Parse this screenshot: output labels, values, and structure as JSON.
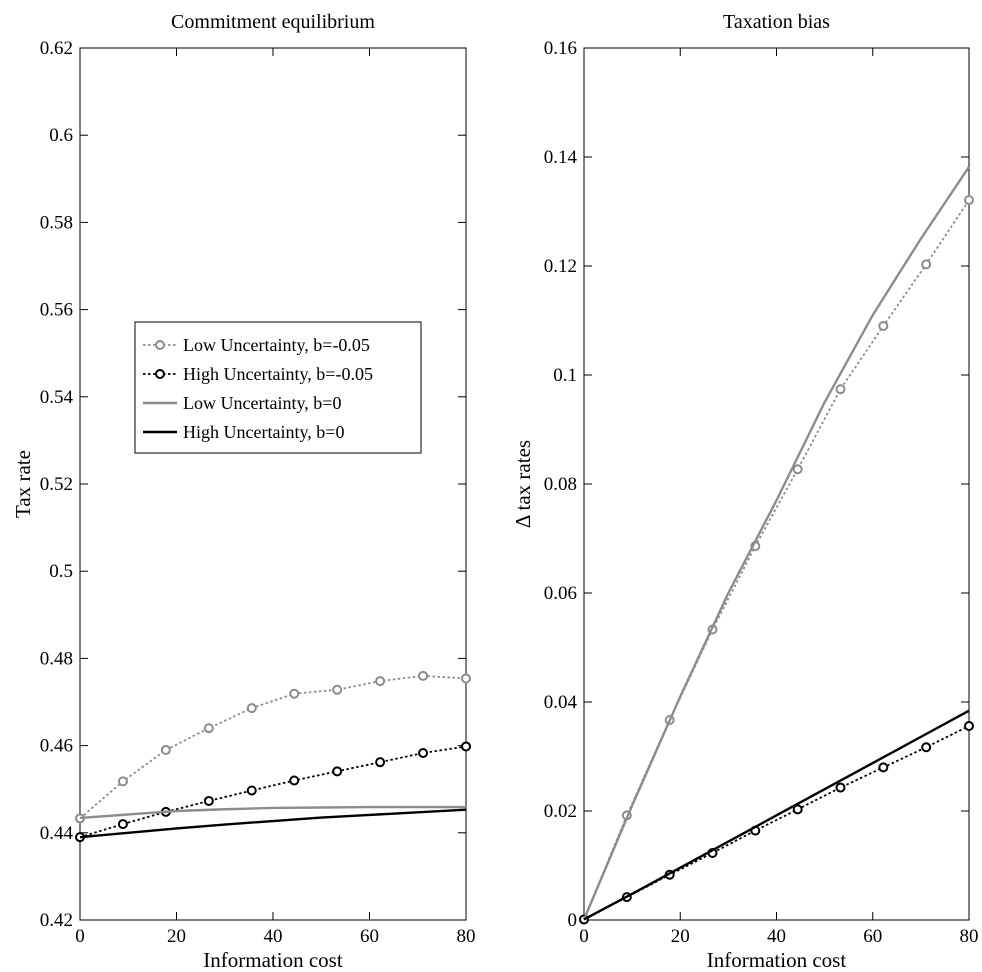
{
  "chart_data": [
    {
      "type": "line",
      "title": "Commitment equilibrium",
      "xlabel": "Information cost",
      "ylabel": "Tax rate",
      "xlim": [
        0,
        80
      ],
      "ylim": [
        0.42,
        0.62
      ],
      "xticks": [
        "0",
        "20",
        "40",
        "60",
        "80"
      ],
      "yticks": [
        "0.42",
        "0.44",
        "0.46",
        "0.48",
        "0.5",
        "0.52",
        "0.54",
        "0.56",
        "0.58",
        "0.6",
        "0.62"
      ],
      "grid": false,
      "legend_position": "center-left",
      "series": [
        {
          "name": "Low Uncertainty, b=-0.05",
          "color": "#8c8c8c",
          "style": "dotted",
          "marker": "circle",
          "x": [
            0,
            8.9,
            17.8,
            26.7,
            35.6,
            44.4,
            53.3,
            62.2,
            71.1,
            80
          ],
          "y": [
            0.4433,
            0.4518,
            0.459,
            0.464,
            0.4686,
            0.4719,
            0.4728,
            0.4748,
            0.476,
            0.4754
          ]
        },
        {
          "name": "High Uncertainty, b=-0.05",
          "color": "#000000",
          "style": "dotted",
          "marker": "circle",
          "x": [
            0,
            8.9,
            17.8,
            26.7,
            35.6,
            44.4,
            53.3,
            62.2,
            71.1,
            80
          ],
          "y": [
            0.439,
            0.442,
            0.4448,
            0.4473,
            0.4497,
            0.452,
            0.4541,
            0.4562,
            0.4583,
            0.4598
          ]
        },
        {
          "name": "Low Uncertainty, b=0",
          "color": "#8c8c8c",
          "style": "solid",
          "marker": "none",
          "x": [
            0,
            10,
            20,
            30,
            40,
            50,
            60,
            70,
            80
          ],
          "y": [
            0.4434,
            0.4442,
            0.445,
            0.4454,
            0.4457,
            0.4458,
            0.4459,
            0.4459,
            0.4459
          ]
        },
        {
          "name": "High Uncertainty, b=0",
          "color": "#000000",
          "style": "solid",
          "marker": "none",
          "x": [
            0,
            10,
            20,
            30,
            40,
            50,
            60,
            70,
            80
          ],
          "y": [
            0.439,
            0.44,
            0.441,
            0.4419,
            0.4427,
            0.4435,
            0.4441,
            0.4447,
            0.4453
          ]
        }
      ],
      "legend_entries": [
        "Low Uncertainty, b=-0.05",
        "High Uncertainty, b=-0.05",
        "Low Uncertainty, b=0",
        "High Uncertainty, b=0"
      ]
    },
    {
      "type": "line",
      "title": "Taxation bias",
      "xlabel": "Information cost",
      "ylabel": "Δ tax rates",
      "xlim": [
        0,
        80
      ],
      "ylim": [
        0,
        0.16
      ],
      "xticks": [
        "0",
        "20",
        "40",
        "60",
        "80"
      ],
      "yticks": [
        "0",
        "0.02",
        "0.04",
        "0.06",
        "0.08",
        "0.1",
        "0.12",
        "0.14",
        "0.16"
      ],
      "grid": false,
      "series": [
        {
          "color": "#8c8c8c",
          "style": "dotted",
          "marker": "circle",
          "x": [
            0,
            8.9,
            17.8,
            26.7,
            35.6,
            44.4,
            53.3,
            62.2,
            71.1,
            80
          ],
          "y": [
            0.0001,
            0.0192,
            0.0367,
            0.0533,
            0.0686,
            0.0827,
            0.0974,
            0.109,
            0.1203,
            0.1321
          ]
        },
        {
          "color": "#000000",
          "style": "dotted",
          "marker": "circle",
          "x": [
            0,
            8.9,
            17.8,
            26.7,
            35.6,
            44.4,
            53.3,
            62.2,
            71.1,
            80
          ],
          "y": [
            0.0001,
            0.0042,
            0.0083,
            0.0123,
            0.0164,
            0.0203,
            0.0243,
            0.028,
            0.0317,
            0.0356
          ]
        },
        {
          "color": "#8c8c8c",
          "style": "solid",
          "marker": "none",
          "x": [
            0,
            10,
            20,
            30,
            40,
            50,
            60,
            70,
            80
          ],
          "y": [
            0.0001,
            0.021,
            0.041,
            0.06,
            0.077,
            0.095,
            0.111,
            0.125,
            0.1382
          ]
        },
        {
          "color": "#000000",
          "style": "solid",
          "marker": "none",
          "x": [
            0,
            10,
            20,
            30,
            40,
            50,
            60,
            70,
            80
          ],
          "y": [
            0.0001,
            0.0048,
            0.0096,
            0.0144,
            0.0192,
            0.024,
            0.0288,
            0.0336,
            0.0384
          ]
        }
      ]
    }
  ]
}
